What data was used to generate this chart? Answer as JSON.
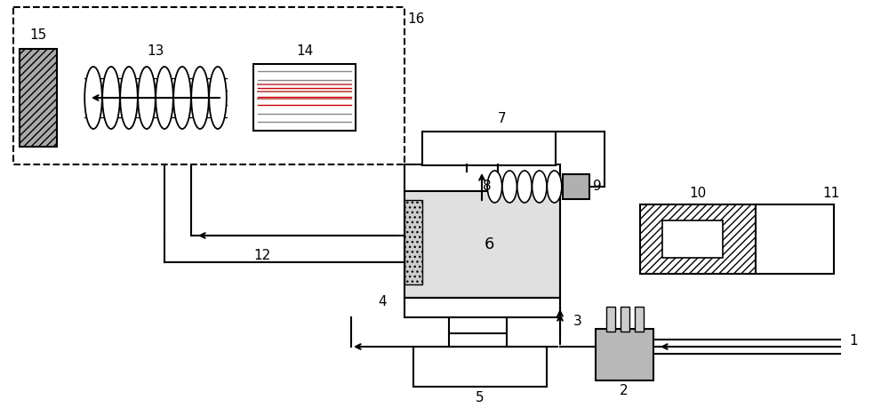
{
  "bg_color": "#ffffff",
  "lw": 1.5
}
